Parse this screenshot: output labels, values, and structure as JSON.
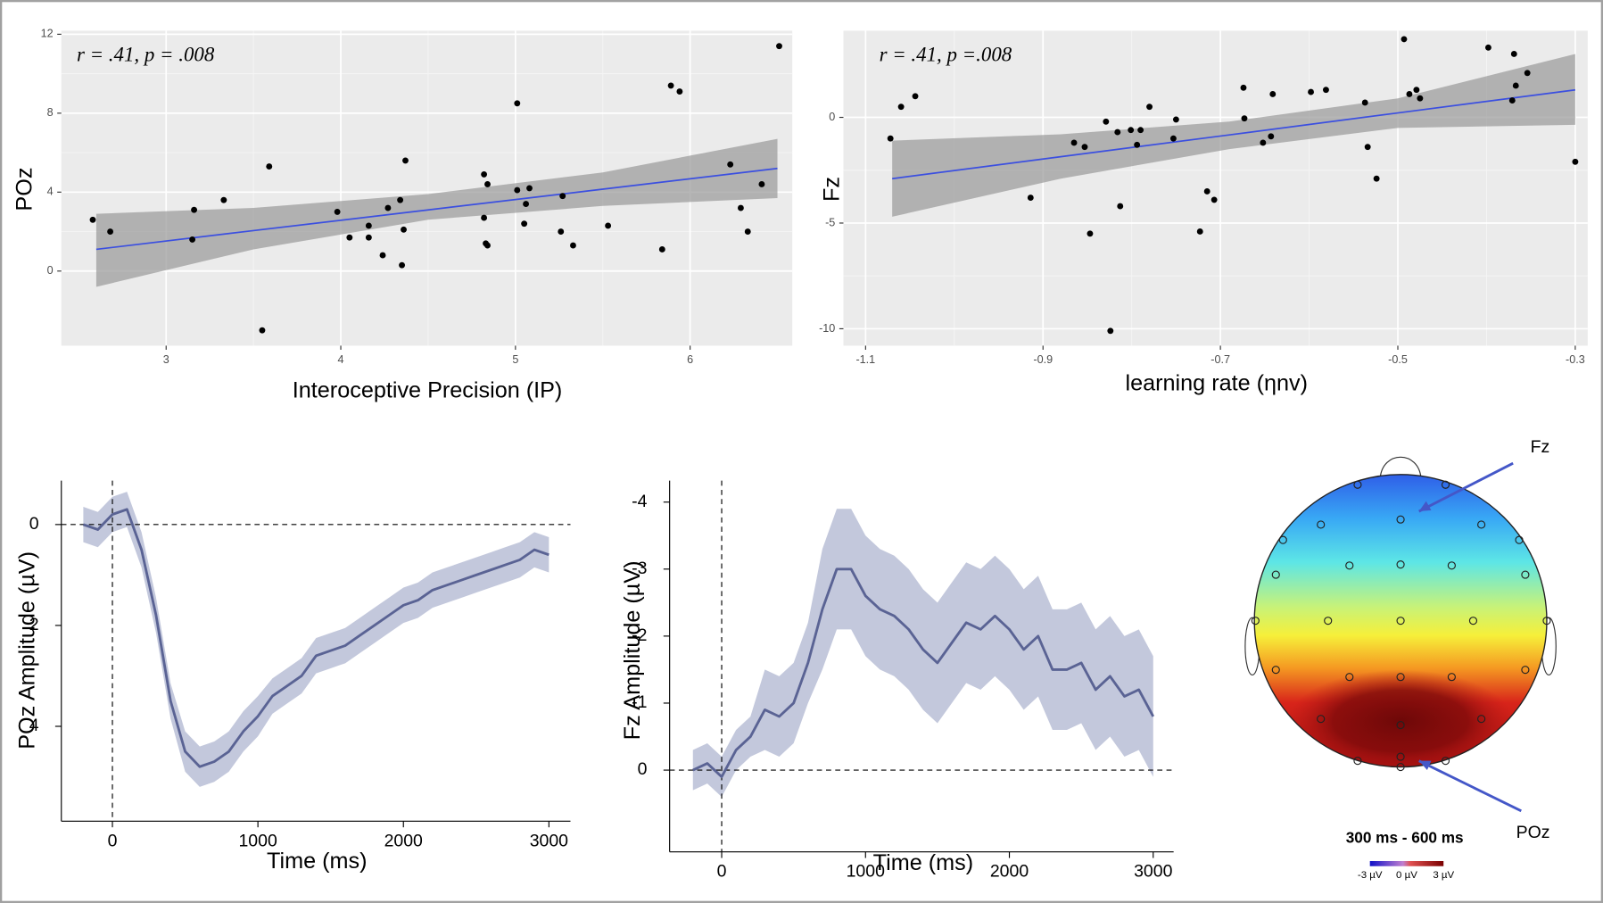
{
  "chart_data": [
    {
      "type": "scatter",
      "annotation": "r = .41, p = .008",
      "x_label": "Interoceptive Precision (IP)",
      "y_label": "POz",
      "x": [
        2.58,
        2.68,
        3.16,
        3.15,
        3.33,
        3.59,
        3.55,
        3.98,
        4.05,
        4.16,
        4.16,
        4.24,
        4.27,
        4.34,
        4.35,
        4.36,
        4.37,
        4.82,
        4.84,
        4.82,
        4.83,
        4.84,
        5.01,
        5.01,
        5.06,
        5.05,
        5.08,
        5.26,
        5.27,
        5.33,
        5.53,
        5.84,
        5.89,
        5.94,
        6.23,
        6.29,
        6.33,
        6.41,
        6.51
      ],
      "values": [
        2.6,
        2.0,
        3.1,
        1.6,
        3.6,
        5.3,
        -3.0,
        3.0,
        1.7,
        2.3,
        1.7,
        0.8,
        3.2,
        3.6,
        0.3,
        2.1,
        5.6,
        4.9,
        4.4,
        2.7,
        1.4,
        1.3,
        8.5,
        4.1,
        3.4,
        2.4,
        4.2,
        2.0,
        3.8,
        1.3,
        2.3,
        1.1,
        9.4,
        9.1,
        5.4,
        3.2,
        2.0,
        4.4,
        11.4
      ],
      "fit": {
        "x": [
          2.6,
          3.5,
          4.5,
          5.5,
          6.5
        ],
        "y": [
          1.1,
          2.05,
          3.1,
          4.15,
          5.2
        ],
        "lower": [
          -0.8,
          1.1,
          2.6,
          3.3,
          3.7
        ],
        "upper": [
          2.9,
          3.2,
          3.9,
          5.0,
          6.7
        ]
      },
      "xlim": [
        2.4,
        6.585
      ],
      "ylim": [
        -3.78,
        12.18
      ],
      "xticks": [
        3,
        4,
        5,
        6
      ],
      "yticks": [
        0,
        4,
        8,
        12
      ],
      "grid": true,
      "color": "#000000",
      "fit_color": "#3b4fe0",
      "band_color": "#999999"
    },
    {
      "type": "scatter",
      "annotation": "r = .41, p =.008",
      "x_label": "learning rate (ηnv)",
      "y_label": "Fz",
      "x": [
        -1.072,
        -1.06,
        -1.044,
        -0.914,
        -0.865,
        -0.853,
        -0.847,
        -0.829,
        -0.824,
        -0.816,
        -0.813,
        -0.801,
        -0.794,
        -0.79,
        -0.78,
        -0.753,
        -0.75,
        -0.723,
        -0.715,
        -0.707,
        -0.673,
        -0.674,
        -0.652,
        -0.643,
        -0.641,
        -0.598,
        -0.581,
        -0.537,
        -0.534,
        -0.524,
        -0.493,
        -0.487,
        -0.479,
        -0.475,
        -0.398,
        -0.369,
        -0.371,
        -0.367,
        -0.354,
        -0.3
      ],
      "values": [
        -1.0,
        0.5,
        1.0,
        -3.8,
        -1.2,
        -1.4,
        -5.5,
        -0.2,
        -10.1,
        -0.7,
        -4.2,
        -0.6,
        -1.3,
        -0.6,
        0.5,
        -1.0,
        -0.1,
        -5.4,
        -3.5,
        -3.9,
        -0.05,
        1.4,
        -1.2,
        -0.9,
        1.1,
        1.2,
        1.3,
        0.7,
        -1.4,
        -2.9,
        3.7,
        1.1,
        1.3,
        0.9,
        3.3,
        3.0,
        0.8,
        1.5,
        2.1,
        -2.1
      ],
      "fit": {
        "x": [
          -1.07,
          -0.88,
          -0.69,
          -0.5,
          -0.3
        ],
        "y": [
          -2.9,
          -1.86,
          -0.83,
          0.21,
          1.3
        ],
        "lower": [
          -4.7,
          -2.9,
          -1.5,
          -0.5,
          -0.35
        ],
        "upper": [
          -1.1,
          -0.8,
          -0.2,
          0.9,
          3.0
        ]
      },
      "xlim": [
        -1.125,
        -0.286
      ],
      "ylim": [
        -10.8,
        4.1
      ],
      "xticks": [
        -1.1,
        -0.9,
        -0.7,
        -0.5,
        -0.3
      ],
      "yticks": [
        -10,
        -5,
        0
      ],
      "grid": true,
      "color": "#000000",
      "fit_color": "#3b4fe0",
      "band_color": "#999999"
    },
    {
      "type": "line",
      "x_label": "Time (ms)",
      "y_label": "POz Amplitude (µV)",
      "x": [
        -200,
        -100,
        0,
        100,
        200,
        300,
        400,
        500,
        600,
        700,
        800,
        900,
        1000,
        1100,
        1200,
        1300,
        1400,
        1500,
        1600,
        1700,
        1800,
        1900,
        2000,
        2100,
        2200,
        2300,
        2400,
        2500,
        2600,
        2700,
        2800,
        2900,
        3000
      ],
      "values": [
        0.0,
        0.1,
        -0.2,
        -0.3,
        0.5,
        1.8,
        3.5,
        4.5,
        4.8,
        4.7,
        4.5,
        4.1,
        3.8,
        3.4,
        3.2,
        3.0,
        2.6,
        2.5,
        2.4,
        2.2,
        2.0,
        1.8,
        1.6,
        1.5,
        1.3,
        1.2,
        1.1,
        1.0,
        0.9,
        0.8,
        0.7,
        0.5,
        0.6
      ],
      "lower": [
        -0.35,
        -0.25,
        -0.55,
        -0.65,
        0.15,
        1.45,
        3.15,
        4.1,
        4.4,
        4.3,
        4.1,
        3.7,
        3.4,
        3.05,
        2.85,
        2.65,
        2.25,
        2.15,
        2.05,
        1.85,
        1.65,
        1.45,
        1.25,
        1.15,
        0.95,
        0.85,
        0.75,
        0.65,
        0.55,
        0.45,
        0.35,
        0.15,
        0.25
      ],
      "upper": [
        0.35,
        0.45,
        0.15,
        0.05,
        0.85,
        2.15,
        3.85,
        4.9,
        5.2,
        5.1,
        4.9,
        4.5,
        4.2,
        3.75,
        3.55,
        3.35,
        2.95,
        2.85,
        2.75,
        2.55,
        2.35,
        2.15,
        1.95,
        1.85,
        1.65,
        1.55,
        1.45,
        1.35,
        1.25,
        1.15,
        1.05,
        0.85,
        0.95
      ],
      "xlim": [
        -351,
        3148
      ],
      "ylim": [
        -0.87,
        5.88
      ],
      "y_reversed": true,
      "xticks": [
        0,
        1000,
        2000,
        3000
      ],
      "yticks": [
        0,
        2,
        4
      ],
      "hlines": [
        0
      ],
      "vlines": [
        0
      ],
      "color": "#5a6394",
      "band_color": "#b9bed6"
    },
    {
      "type": "line",
      "x_label": "Time (ms)",
      "y_label": "Fz Amplitude (µV)",
      "x": [
        -200,
        -100,
        0,
        100,
        200,
        300,
        400,
        500,
        600,
        700,
        800,
        900,
        1000,
        1100,
        1200,
        1300,
        1400,
        1500,
        1600,
        1700,
        1800,
        1900,
        2000,
        2100,
        2200,
        2300,
        2400,
        2500,
        2600,
        2700,
        2800,
        2900,
        3000
      ],
      "values": [
        0.0,
        -0.1,
        0.1,
        -0.3,
        -0.5,
        -0.9,
        -0.8,
        -1.0,
        -1.6,
        -2.4,
        -3.0,
        -3.0,
        -2.6,
        -2.4,
        -2.3,
        -2.1,
        -1.8,
        -1.6,
        -1.9,
        -2.2,
        -2.1,
        -2.3,
        -2.1,
        -1.8,
        -2.0,
        -1.5,
        -1.5,
        -1.6,
        -1.2,
        -1.4,
        -1.1,
        -1.2,
        -0.8
      ],
      "lower": [
        -0.3,
        -0.4,
        -0.2,
        -0.6,
        -0.8,
        -1.5,
        -1.4,
        -1.6,
        -2.2,
        -3.3,
        -3.9,
        -3.9,
        -3.5,
        -3.3,
        -3.2,
        -3.0,
        -2.7,
        -2.5,
        -2.8,
        -3.1,
        -3.0,
        -3.2,
        -3.0,
        -2.7,
        -2.9,
        -2.4,
        -2.4,
        -2.5,
        -2.1,
        -2.3,
        -2.0,
        -2.1,
        -1.7
      ],
      "upper": [
        0.3,
        0.2,
        0.4,
        0.0,
        -0.2,
        -0.3,
        -0.2,
        -0.4,
        -1.0,
        -1.5,
        -2.1,
        -2.1,
        -1.7,
        -1.5,
        -1.4,
        -1.2,
        -0.9,
        -0.7,
        -1.0,
        -1.3,
        -1.2,
        -1.4,
        -1.2,
        -0.9,
        -1.1,
        -0.6,
        -0.6,
        -0.7,
        -0.3,
        -0.5,
        -0.2,
        -0.3,
        0.1
      ],
      "xlim": [
        -362,
        3142
      ],
      "ylim": [
        -4.32,
        1.22
      ],
      "y_reversed": true,
      "xticks": [
        0,
        1000,
        2000,
        3000
      ],
      "yticks": [
        -4,
        -3,
        -2,
        -1,
        0
      ],
      "hlines": [
        0
      ],
      "vlines": [
        0
      ],
      "color": "#5a6394",
      "band_color": "#b9bed6"
    },
    {
      "type": "topomap",
      "labels": [
        "Fz",
        "POz"
      ],
      "caption": "300 ms - 600 ms",
      "colorbar": {
        "lim": [
          -3,
          3
        ],
        "ticks": [
          {
            "value": -3,
            "label": "-3 µV"
          },
          {
            "value": 0,
            "label": "0 µV"
          },
          {
            "value": 3,
            "label": "3 µV"
          }
        ]
      }
    }
  ]
}
